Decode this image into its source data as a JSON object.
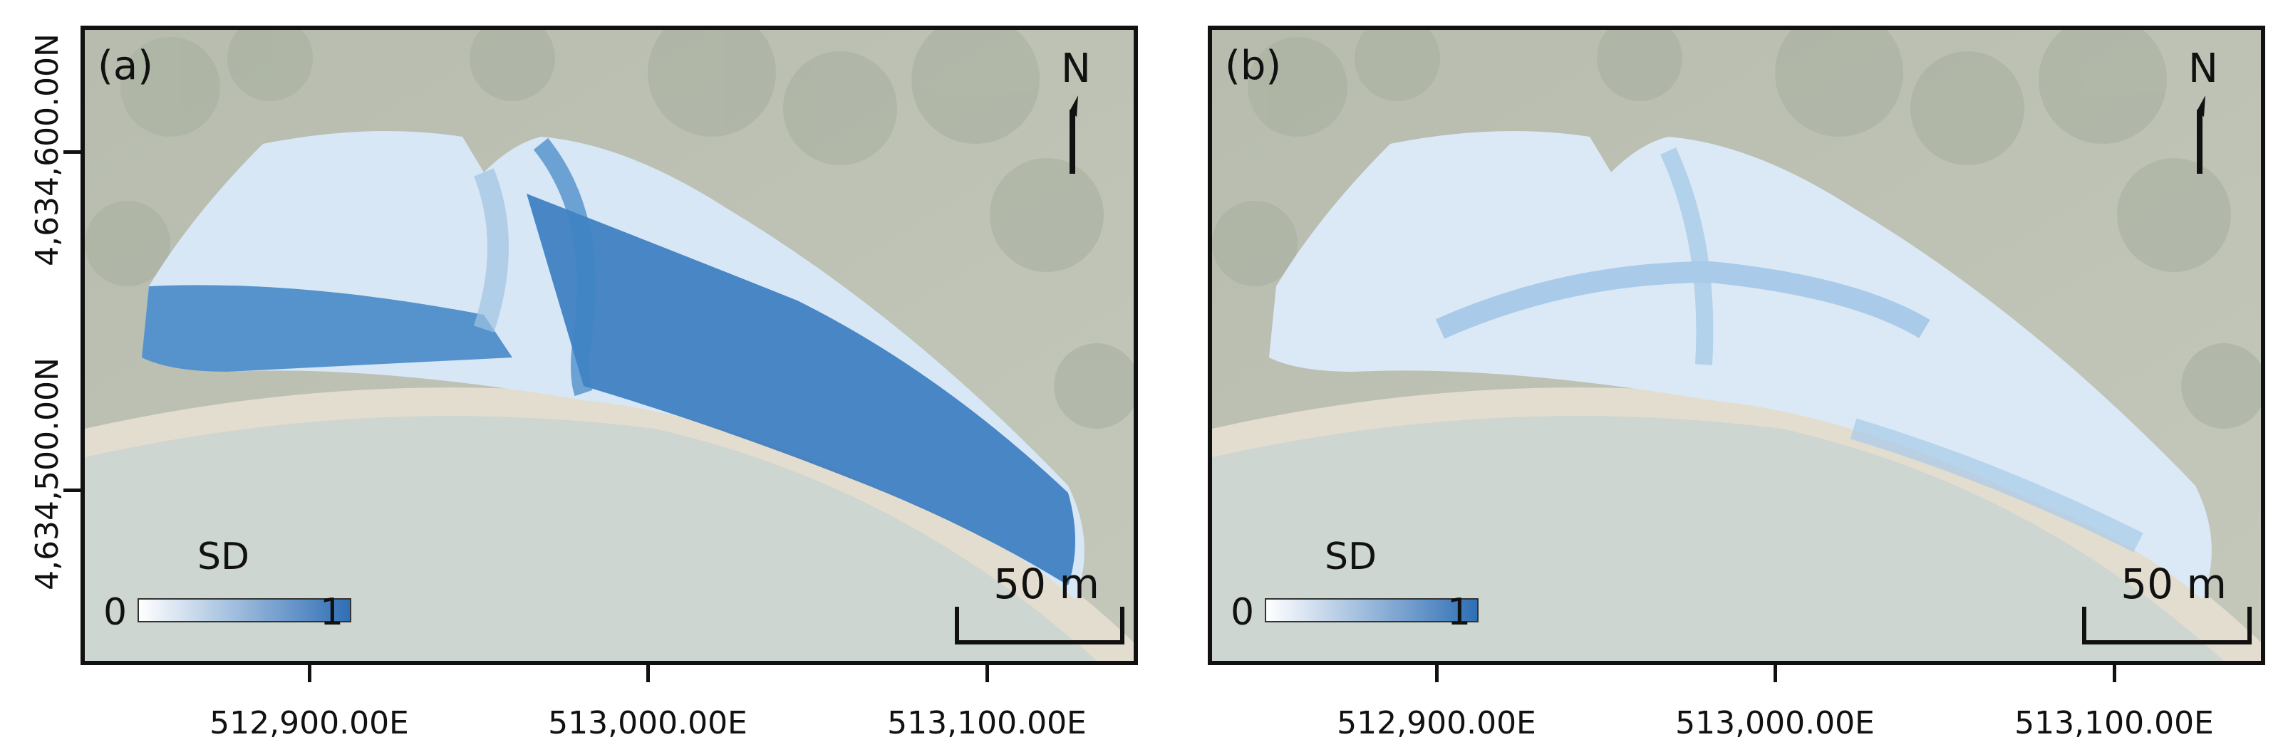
{
  "panels": [
    {
      "label": "(a)",
      "north": "N",
      "legend": {
        "title": "SD",
        "min": "0",
        "max": "1",
        "color_low": "#ffffff",
        "color_high": "#2f6fb5"
      },
      "scale_bar": "50 m",
      "x_ticks": [
        "512,900.00E",
        "513,000.00E",
        "513,100.00E"
      ],
      "overlay_intensity": "high"
    },
    {
      "label": "(b)",
      "north": "N",
      "legend": {
        "title": "SD",
        "min": "0",
        "max": "1",
        "color_low": "#ffffff",
        "color_high": "#2f6fb5"
      },
      "scale_bar": "50 m",
      "x_ticks": [
        "512,900.00E",
        "513,000.00E",
        "513,100.00E"
      ],
      "overlay_intensity": "low"
    }
  ],
  "y_ticks": [
    "4,634,600.00N",
    "4,634,500.00N"
  ],
  "colors": {
    "sea": "#cfd8d3",
    "land": "#b9beb1",
    "sand": "#e6e0d2",
    "frame": "#111111"
  }
}
